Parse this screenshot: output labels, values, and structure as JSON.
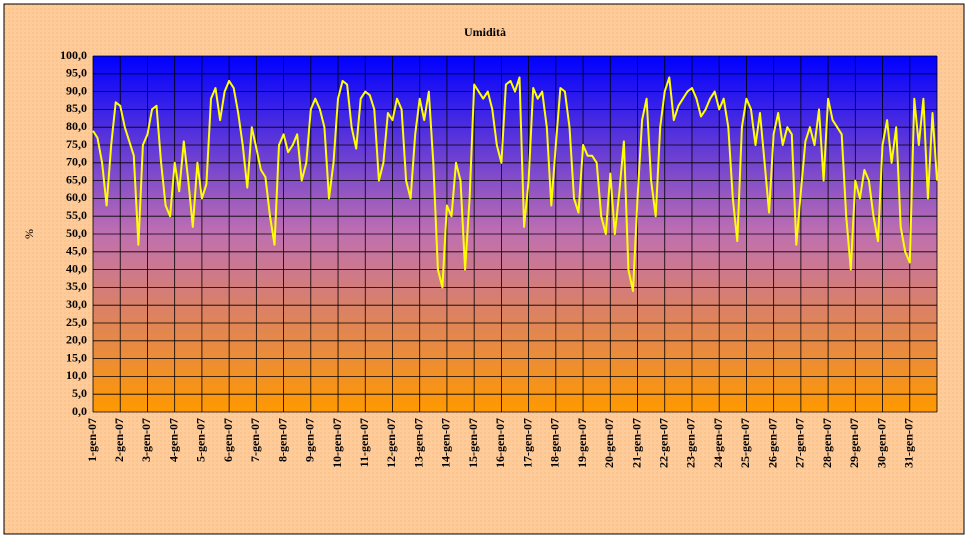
{
  "chart_data": {
    "type": "line",
    "title": "Umidità",
    "y_label": "%",
    "categories": [
      "1-gen-07",
      null,
      null,
      null,
      null,
      null,
      "2-gen-07",
      null,
      null,
      null,
      null,
      null,
      "3-gen-07",
      null,
      null,
      null,
      null,
      null,
      "4-gen-07",
      null,
      null,
      null,
      null,
      null,
      "5-gen-07",
      null,
      null,
      null,
      null,
      null,
      "6-gen-07",
      null,
      null,
      null,
      null,
      null,
      "7-gen-07",
      null,
      null,
      null,
      null,
      null,
      "8-gen-07",
      null,
      null,
      null,
      null,
      null,
      "9-gen-07",
      null,
      null,
      null,
      null,
      null,
      "10-gen-07",
      null,
      null,
      null,
      null,
      null,
      "11-gen-07",
      null,
      null,
      null,
      null,
      null,
      "12-gen-07",
      null,
      null,
      null,
      null,
      null,
      "13-gen-07",
      null,
      null,
      null,
      null,
      null,
      "14-gen-07",
      null,
      null,
      null,
      null,
      null,
      "15-gen-07",
      null,
      null,
      null,
      null,
      null,
      "16-gen-07",
      null,
      null,
      null,
      null,
      null,
      "17-gen-07",
      null,
      null,
      null,
      null,
      null,
      "18-gen-07",
      null,
      null,
      null,
      null,
      null,
      "19-gen-07",
      null,
      null,
      null,
      null,
      null,
      "20-gen-07",
      null,
      null,
      null,
      null,
      null,
      "21-gen-07",
      null,
      null,
      null,
      null,
      null,
      "22-gen-07",
      null,
      null,
      null,
      null,
      null,
      "23-gen-07",
      null,
      null,
      null,
      null,
      null,
      "24-gen-07",
      null,
      null,
      null,
      null,
      null,
      "25-gen-07",
      null,
      null,
      null,
      null,
      null,
      "26-gen-07",
      null,
      null,
      null,
      null,
      null,
      "27-gen-07",
      null,
      null,
      null,
      null,
      null,
      "28-gen-07",
      null,
      null,
      null,
      null,
      null,
      "29-gen-07",
      null,
      null,
      null,
      null,
      null,
      "30-gen-07",
      null,
      null,
      null,
      null,
      null,
      "31-gen-07",
      null,
      null,
      null,
      null,
      null,
      null
    ],
    "series": [
      {
        "name": "Umidità",
        "color": "#ffff00",
        "values": [
          79,
          77,
          70,
          58,
          75,
          87,
          86,
          80,
          76,
          72,
          47,
          75,
          78,
          85,
          86,
          70,
          58,
          55,
          70,
          62,
          76,
          65,
          52,
          70,
          60,
          64,
          88,
          91,
          82,
          90,
          93,
          91,
          84,
          75,
          63,
          80,
          74,
          68,
          66,
          55,
          47,
          75,
          78,
          73,
          75,
          78,
          65,
          70,
          85,
          88,
          85,
          80,
          60,
          70,
          88,
          93,
          92,
          80,
          74,
          88,
          90,
          89,
          85,
          65,
          70,
          84,
          82,
          88,
          85,
          65,
          60,
          78,
          88,
          82,
          90,
          70,
          40,
          35,
          58,
          55,
          70,
          65,
          40,
          60,
          92,
          90,
          88,
          90,
          85,
          75,
          70,
          92,
          93,
          90,
          94,
          52,
          65,
          91,
          88,
          90,
          80,
          58,
          75,
          91,
          90,
          80,
          60,
          56,
          75,
          72,
          72,
          70,
          55,
          50,
          67,
          50,
          62,
          76,
          40,
          34,
          60,
          82,
          88,
          65,
          55,
          80,
          90,
          94,
          82,
          86,
          88,
          90,
          91,
          88,
          83,
          85,
          88,
          90,
          85,
          88,
          80,
          60,
          48,
          80,
          88,
          85,
          75,
          84,
          70,
          56,
          78,
          84,
          75,
          80,
          78,
          47,
          62,
          76,
          80,
          75,
          85,
          65,
          88,
          82,
          80,
          78,
          55,
          40,
          65,
          60,
          68,
          65,
          55,
          48,
          75,
          82,
          70,
          80,
          52,
          45,
          42,
          88,
          75,
          88,
          60,
          84,
          65
        ]
      }
    ],
    "ylim": [
      0,
      100
    ],
    "yticks": [
      {
        "value": 0,
        "label": "0,0"
      },
      {
        "value": 5,
        "label": "5,0"
      },
      {
        "value": 10,
        "label": "10,0"
      },
      {
        "value": 15,
        "label": "15,0"
      },
      {
        "value": 20,
        "label": "20,0"
      },
      {
        "value": 25,
        "label": "25,0"
      },
      {
        "value": 30,
        "label": "30,0"
      },
      {
        "value": 35,
        "label": "35,0"
      },
      {
        "value": 40,
        "label": "40,0"
      },
      {
        "value": 45,
        "label": "45,0"
      },
      {
        "value": 50,
        "label": "50,0"
      },
      {
        "value": 55,
        "label": "55,0"
      },
      {
        "value": 60,
        "label": "60,0"
      },
      {
        "value": 65,
        "label": "65,0"
      },
      {
        "value": 70,
        "label": "70,0"
      },
      {
        "value": 75,
        "label": "75,0"
      },
      {
        "value": 80,
        "label": "80,0"
      },
      {
        "value": 85,
        "label": "85,0"
      },
      {
        "value": 90,
        "label": "90,0"
      },
      {
        "value": 95,
        "label": "95,0"
      },
      {
        "value": 100,
        "label": "100,0"
      }
    ],
    "grid": true
  }
}
